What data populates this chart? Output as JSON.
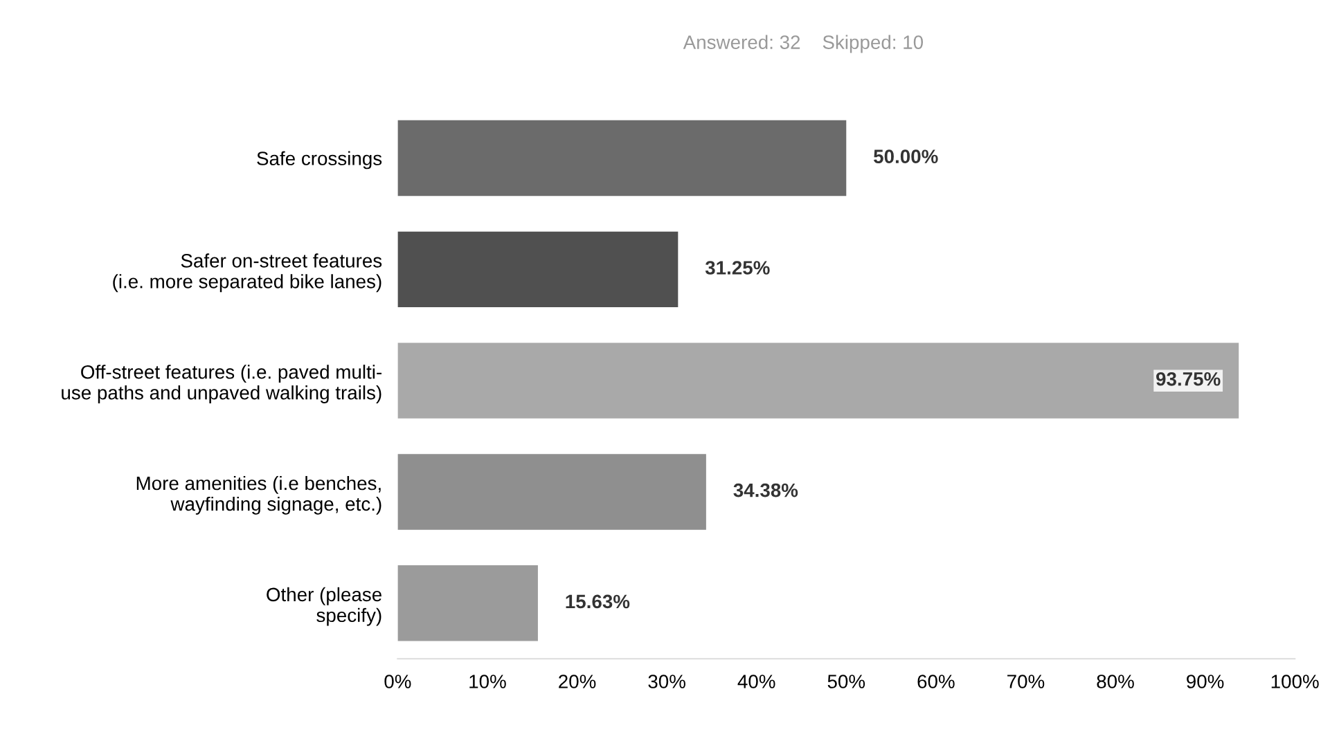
{
  "chart_data": {
    "type": "bar",
    "orientation": "horizontal",
    "subtitle": "Answered: 32    Skipped: 10",
    "categories": [
      "Safe crossings",
      "Safer on-street features\n(i.e. more separated bike lanes)",
      "Off-street features (i.e. paved multi-\nuse paths and unpaved walking trails)",
      "More amenities (i.e benches,\nwayfinding signage, etc.)",
      "Other (please\nspecify)"
    ],
    "values": [
      50.0,
      31.25,
      93.75,
      34.38,
      15.63
    ],
    "value_labels": [
      "50.00%",
      "31.25%",
      "93.75%",
      "34.38%",
      "15.63%"
    ],
    "colors": [
      "#6b6b6b",
      "#505050",
      "#a9a9a9",
      "#8f8f8f",
      "#9b9b9b"
    ],
    "xlim": [
      0,
      100
    ],
    "xticks": [
      {
        "value": 0,
        "label": "0%"
      },
      {
        "value": 10,
        "label": "10%"
      },
      {
        "value": 20,
        "label": "20%"
      },
      {
        "value": 30,
        "label": "30%"
      },
      {
        "value": 40,
        "label": "40%"
      },
      {
        "value": 50,
        "label": "50%"
      },
      {
        "value": 60,
        "label": "60%"
      },
      {
        "value": 70,
        "label": "70%"
      },
      {
        "value": 80,
        "label": "80%"
      },
      {
        "value": 90,
        "label": "90%"
      },
      {
        "value": 100,
        "label": "100%"
      }
    ],
    "grid": false
  }
}
